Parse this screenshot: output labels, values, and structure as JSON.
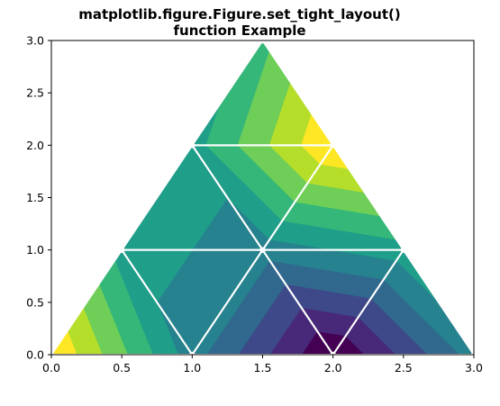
{
  "chart_data": {
    "type": "tricontourf",
    "title": "matplotlib.figure.Figure.set_tight_layout()\nfunction Example",
    "xlabel": "",
    "ylabel": "",
    "xlim": [
      0.0,
      3.0
    ],
    "ylim": [
      0.0,
      3.0
    ],
    "x_ticks": [
      "0.0",
      "0.5",
      "1.0",
      "1.5",
      "2.0",
      "2.5",
      "3.0"
    ],
    "y_ticks": [
      "0.0",
      "0.5",
      "1.0",
      "1.5",
      "2.0",
      "2.5",
      "3.0"
    ],
    "grid": false,
    "colormap": "viridis",
    "mesh_edge_color": "#ffffff",
    "nodes": [
      [
        0.0,
        0.0
      ],
      [
        1.0,
        0.0
      ],
      [
        2.0,
        0.0
      ],
      [
        3.0,
        0.0
      ],
      [
        0.5,
        1.0
      ],
      [
        1.5,
        1.0
      ],
      [
        2.5,
        1.0
      ],
      [
        1.0,
        2.0
      ],
      [
        2.0,
        2.0
      ],
      [
        1.5,
        3.0
      ]
    ],
    "node_values": [
      9,
      4,
      0,
      4,
      5,
      4,
      5,
      5,
      9,
      6
    ],
    "triangles": [
      [
        0,
        1,
        4
      ],
      [
        1,
        5,
        4
      ],
      [
        1,
        2,
        5
      ],
      [
        2,
        6,
        5
      ],
      [
        2,
        3,
        6
      ],
      [
        4,
        5,
        7
      ],
      [
        5,
        8,
        7
      ],
      [
        5,
        6,
        8
      ],
      [
        7,
        8,
        9
      ]
    ],
    "level_colors": [
      "#440154",
      "#482878",
      "#3e4989",
      "#31688e",
      "#26828e",
      "#1f9e89",
      "#35b779",
      "#6ece58",
      "#b5de2b",
      "#fde725"
    ]
  }
}
